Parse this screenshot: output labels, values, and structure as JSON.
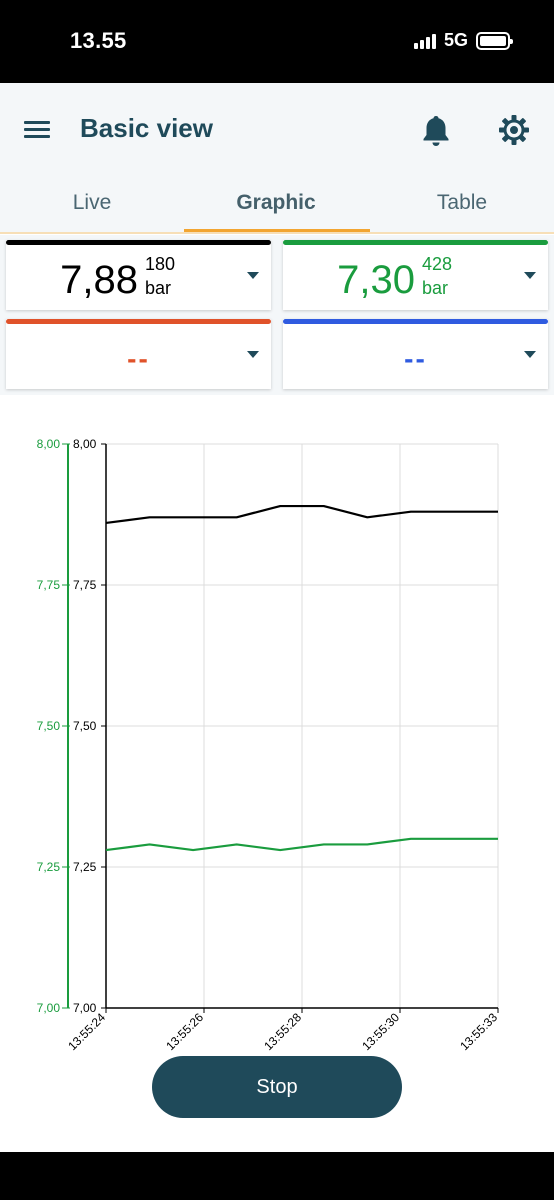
{
  "status_bar": {
    "time": "13.55",
    "network": "5G"
  },
  "app": {
    "title": "Basic view",
    "tabs": [
      {
        "label": "Live",
        "active": false
      },
      {
        "label": "Graphic",
        "active": true
      },
      {
        "label": "Table",
        "active": false
      }
    ],
    "accent_color": "#f2a531",
    "primary_color": "#1f4a5a"
  },
  "cards": [
    {
      "value": "7,88",
      "sub": "180",
      "unit": "bar",
      "color": "#000000"
    },
    {
      "value": "7,30",
      "sub": "428",
      "unit": "bar",
      "color": "#1a9c3e"
    },
    {
      "value": "--",
      "color": "#e0522a"
    },
    {
      "value": "--",
      "color": "#2f5be0"
    }
  ],
  "chart_data": {
    "type": "line",
    "x_labels": [
      "13:55:24",
      "13:55:26",
      "13:55:28",
      "13:55:30",
      "13:55:33"
    ],
    "y_left_ticks": [
      "8,00",
      "7,75",
      "7,50",
      "7,25",
      "7,00"
    ],
    "y_right_ticks": [
      "8,00",
      "7,75",
      "7,50",
      "7,25",
      "7,00"
    ],
    "ylim": [
      7.0,
      8.0
    ],
    "grid": true,
    "series": [
      {
        "color": "#000000",
        "values": [
          7.86,
          7.87,
          7.87,
          7.87,
          7.89,
          7.89,
          7.87,
          7.88,
          7.88,
          7.88
        ]
      },
      {
        "color": "#1a9c3e",
        "values": [
          7.28,
          7.29,
          7.28,
          7.29,
          7.28,
          7.29,
          7.29,
          7.3,
          7.3,
          7.3
        ]
      }
    ]
  },
  "stop_button": {
    "label": "Stop"
  }
}
